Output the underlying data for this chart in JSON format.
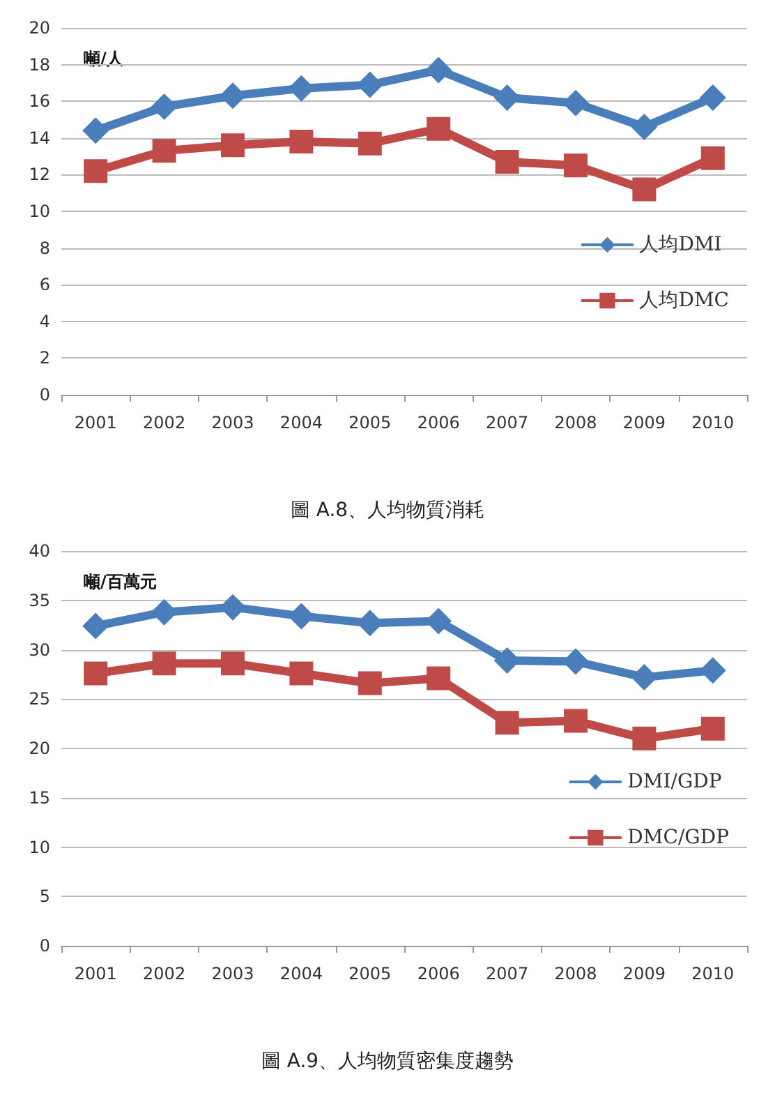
{
  "chart_data": [
    {
      "type": "line",
      "title": "圖 A.8、人均物質消耗",
      "ylabel": "噸/人",
      "categories": [
        "2001",
        "2002",
        "2003",
        "2004",
        "2005",
        "2006",
        "2007",
        "2008",
        "2009",
        "2010"
      ],
      "series": [
        {
          "name": "人均DMI",
          "color": "#4a7ebb",
          "marker": "diamond",
          "values": [
            14.4,
            15.7,
            16.3,
            16.7,
            16.9,
            17.7,
            16.2,
            15.9,
            14.6,
            16.2
          ]
        },
        {
          "name": "人均DMC",
          "color": "#be4b48",
          "marker": "square",
          "values": [
            12.2,
            13.3,
            13.6,
            13.8,
            13.7,
            14.5,
            12.7,
            12.5,
            11.2,
            12.9
          ]
        }
      ],
      "ylim": [
        0,
        20
      ],
      "yticks": [
        0,
        2,
        4,
        6,
        8,
        10,
        12,
        14,
        16,
        18,
        20
      ],
      "grid": "y",
      "legend": "right"
    },
    {
      "type": "line",
      "title": "圖 A.9、人均物質密集度趨勢",
      "ylabel": "噸/百萬元",
      "categories": [
        "2001",
        "2002",
        "2003",
        "2004",
        "2005",
        "2006",
        "2007",
        "2008",
        "2009",
        "2010"
      ],
      "series": [
        {
          "name": "DMI/GDP",
          "color": "#4a7ebb",
          "marker": "diamond",
          "values": [
            32.4,
            33.8,
            34.3,
            33.4,
            32.7,
            32.9,
            28.9,
            28.8,
            27.2,
            27.9
          ]
        },
        {
          "name": "DMC/GDP",
          "color": "#be4b48",
          "marker": "square",
          "values": [
            27.6,
            28.6,
            28.6,
            27.6,
            26.6,
            27.1,
            22.6,
            22.8,
            21.0,
            22.0
          ]
        }
      ],
      "ylim": [
        0,
        40
      ],
      "yticks": [
        0,
        5,
        10,
        15,
        20,
        25,
        30,
        35,
        40
      ],
      "grid": "y",
      "legend": "right"
    }
  ]
}
